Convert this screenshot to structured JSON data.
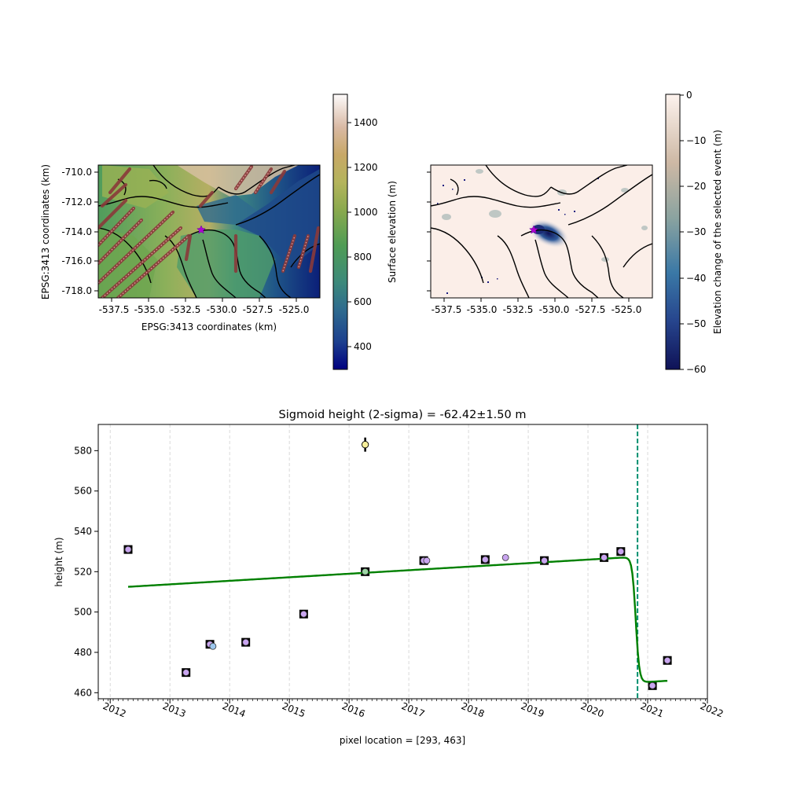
{
  "map_left": {
    "xticks": [
      "-537.5",
      "-535.0",
      "-532.5",
      "-530.0",
      "-527.5",
      "-525.0"
    ],
    "yticks": [
      "-710.0",
      "-712.0",
      "-714.0",
      "-716.0",
      "-718.0"
    ],
    "xlabel": "EPSG:3413 coordinates (km)",
    "ylabel": "EPSG:3413 coordinates (km)",
    "colorbar": {
      "label": "Surface elevation (m)",
      "ticks": [
        "1400",
        "1200",
        "1000",
        "800",
        "600",
        "400"
      ],
      "range": [
        300,
        1530
      ]
    }
  },
  "map_right": {
    "xticks": [
      "-537.5",
      "-535.0",
      "-532.5",
      "-530.0",
      "-527.5",
      "-525.0"
    ],
    "colorbar": {
      "label": "Elevation change of the selected event (m)",
      "ticks": [
        "0",
        "−10",
        "−20",
        "−30",
        "−40",
        "−50",
        "−60"
      ],
      "range": [
        -60,
        0
      ]
    }
  },
  "chart_data": {
    "type": "scatter",
    "title": "Sigmoid height (2-sigma) = -62.42±1.50 m",
    "xlabel": "pixel location = [293, 463]",
    "ylabel": "height (m)",
    "xlim": [
      2011.8,
      2022.0
    ],
    "ylim": [
      457,
      593
    ],
    "yticks": [
      460,
      480,
      500,
      520,
      540,
      560,
      580
    ],
    "xtick_labels": [
      "2012",
      "2013",
      "2014",
      "2015",
      "2016",
      "2017",
      "2018",
      "2019",
      "2020",
      "2021",
      "2022"
    ],
    "xticks": [
      2012,
      2013,
      2014,
      2015,
      2016,
      2017,
      2018,
      2019,
      2020,
      2021,
      2022
    ],
    "squares": [
      {
        "x": 2012.3,
        "y": 531
      },
      {
        "x": 2013.27,
        "y": 470
      },
      {
        "x": 2013.67,
        "y": 484
      },
      {
        "x": 2014.27,
        "y": 485
      },
      {
        "x": 2015.24,
        "y": 499
      },
      {
        "x": 2016.27,
        "y": 520
      },
      {
        "x": 2017.25,
        "y": 525.5
      },
      {
        "x": 2018.28,
        "y": 526
      },
      {
        "x": 2019.27,
        "y": 525.5
      },
      {
        "x": 2020.27,
        "y": 527
      },
      {
        "x": 2020.55,
        "y": 530
      },
      {
        "x": 2021.08,
        "y": 463.5
      },
      {
        "x": 2021.33,
        "y": 476
      }
    ],
    "points": [
      {
        "x": 2012.3,
        "y": 531,
        "color": "#c9a5f0"
      },
      {
        "x": 2013.27,
        "y": 470,
        "color": "#c9a5f0"
      },
      {
        "x": 2013.67,
        "y": 484,
        "color": "#c9a5f0"
      },
      {
        "x": 2013.72,
        "y": 483,
        "color": "#9dc7ee"
      },
      {
        "x": 2014.27,
        "y": 485,
        "color": "#c9a5f0"
      },
      {
        "x": 2015.24,
        "y": 499,
        "color": "#c9a5f0"
      },
      {
        "x": 2016.27,
        "y": 520,
        "color": "#9dd6a5"
      },
      {
        "x": 2017.25,
        "y": 525.5,
        "color": "#c9a5f0"
      },
      {
        "x": 2017.3,
        "y": 525.5,
        "color": "#c9a5f0"
      },
      {
        "x": 2018.28,
        "y": 526,
        "color": "#c9a5f0"
      },
      {
        "x": 2018.62,
        "y": 527,
        "color": "#c9a5f0"
      },
      {
        "x": 2019.27,
        "y": 525.5,
        "color": "#c9a5f0"
      },
      {
        "x": 2020.27,
        "y": 527,
        "color": "#c9a5f0"
      },
      {
        "x": 2020.55,
        "y": 530,
        "color": "#c9a5f0"
      },
      {
        "x": 2021.08,
        "y": 463.5,
        "color": "#c9a5f0"
      },
      {
        "x": 2021.33,
        "y": 476,
        "color": "#c9a5f0"
      }
    ],
    "outlier": {
      "x": 2016.27,
      "y": 583,
      "err": 3.5,
      "color": "#f6ee9a"
    },
    "fit": {
      "x_start": 2012.3,
      "x_end": 2021.33,
      "base_start": 512.5,
      "slope": 1.75,
      "step_center": 2020.8,
      "step_height": -62.4,
      "step_width": 0.03,
      "color": "#008000"
    },
    "event_line": {
      "x": 2020.83,
      "color": "#009070"
    }
  }
}
